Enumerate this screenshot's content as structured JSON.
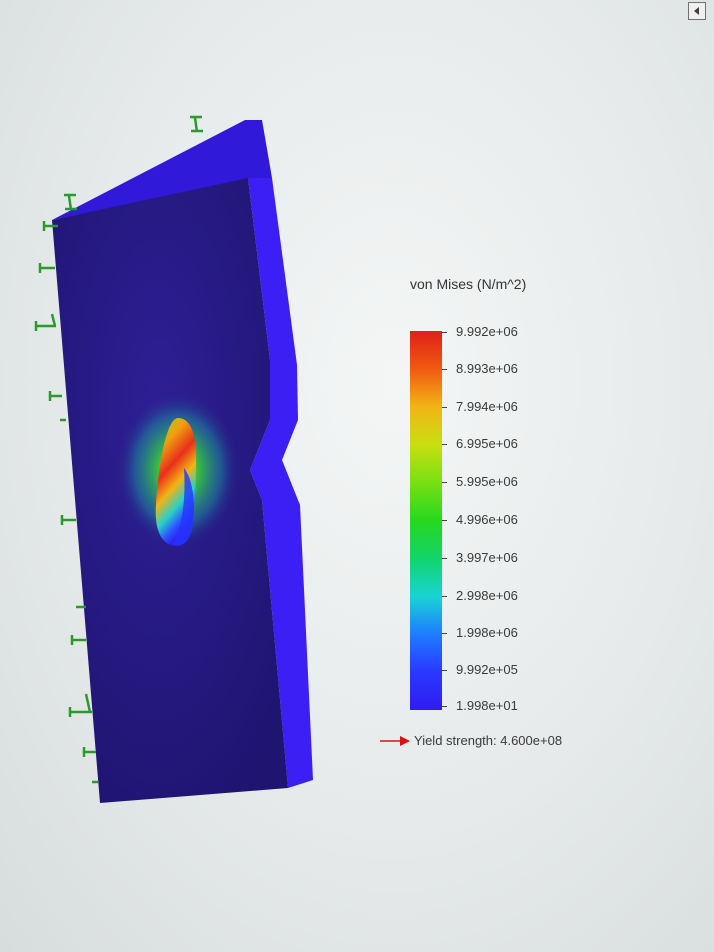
{
  "legend": {
    "title": "von Mises (N/m^2)",
    "ticks": [
      "9.992e+06",
      "8.993e+06",
      "7.994e+06",
      "6.995e+06",
      "5.995e+06",
      "4.996e+06",
      "3.997e+06",
      "2.998e+06",
      "1.998e+06",
      "9.992e+05",
      "1.998e+01"
    ],
    "yield_label": "Yield strength: 4.600e+08",
    "yield_arrow_color": "#e01010"
  },
  "colors": {
    "stress_max": "#e0201a",
    "stress_min": "#2f1cf2",
    "fixture": "#2a9a2a"
  },
  "icons": {
    "corner": "collapse-left-icon",
    "fixture": "fixed-geometry-icon"
  }
}
